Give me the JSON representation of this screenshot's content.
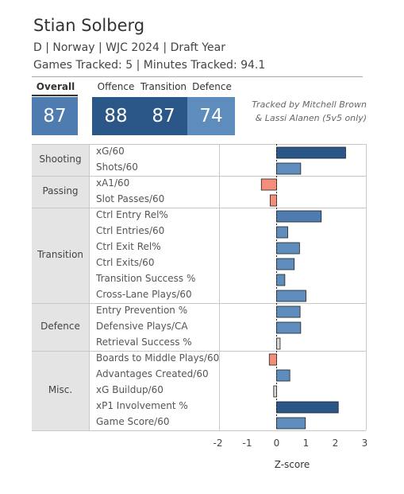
{
  "player": {
    "name": "Stian Solberg",
    "subtitle": "D | Norway | WJC 2024 | Draft Year",
    "tracking": "Games Tracked: 5 | Minutes Tracked: 94.1"
  },
  "ratings": {
    "overall": {
      "label": "Overall",
      "value": "87"
    },
    "offence": {
      "label": "Offence",
      "value": "88"
    },
    "transition": {
      "label": "Transition",
      "value": "87"
    },
    "defence": {
      "label": "Defence",
      "value": "74"
    }
  },
  "tracked_by": {
    "line1": "Tracked by Mitchell Brown",
    "line2": "& Lassi Alanen (5v5 only)"
  },
  "colors": {
    "dark_blue": "#2b5788",
    "mid_blue": "#4f7cb0",
    "light_blue": "#5d8cbd",
    "salmon": "#f28e7b",
    "pale": "#dcd6d2"
  },
  "chart_data": {
    "type": "bar",
    "orientation": "horizontal",
    "xlabel": "Z-score",
    "xlim": [
      -2,
      3
    ],
    "x_ticks": [
      "-2",
      "-1",
      "0",
      "1",
      "2",
      "3"
    ],
    "groups": [
      {
        "name": "Shooting",
        "metrics": [
          {
            "label": "xG/60",
            "value": 2.35
          },
          {
            "label": "Shots/60",
            "value": 0.82
          }
        ]
      },
      {
        "name": "Passing",
        "metrics": [
          {
            "label": "xA1/60",
            "value": -0.52
          },
          {
            "label": "Slot Passes/60",
            "value": -0.22
          }
        ]
      },
      {
        "name": "Transition",
        "metrics": [
          {
            "label": "Ctrl Entry Rel%",
            "value": 1.52
          },
          {
            "label": "Ctrl Entries/60",
            "value": 0.38
          },
          {
            "label": "Ctrl Exit Rel%",
            "value": 0.78
          },
          {
            "label": "Ctrl Exits/60",
            "value": 0.6
          },
          {
            "label": "Transition Success %",
            "value": 0.28
          },
          {
            "label": "Cross-Lane Plays/60",
            "value": 1.0
          }
        ]
      },
      {
        "name": "Defence",
        "metrics": [
          {
            "label": "Entry Prevention %",
            "value": 0.8
          },
          {
            "label": "Defensive Plays/CA",
            "value": 0.82
          },
          {
            "label": "Retrieval Success %",
            "value": 0.12
          }
        ]
      },
      {
        "name": "Misc.",
        "metrics": [
          {
            "label": "Boards to Middle Plays/60",
            "value": -0.25
          },
          {
            "label": "Advantages Created/60",
            "value": 0.45
          },
          {
            "label": "xG Buildup/60",
            "value": -0.1
          },
          {
            "label": "xP1 Involvement %",
            "value": 2.1
          },
          {
            "label": "Game Score/60",
            "value": 0.98
          }
        ]
      }
    ]
  }
}
